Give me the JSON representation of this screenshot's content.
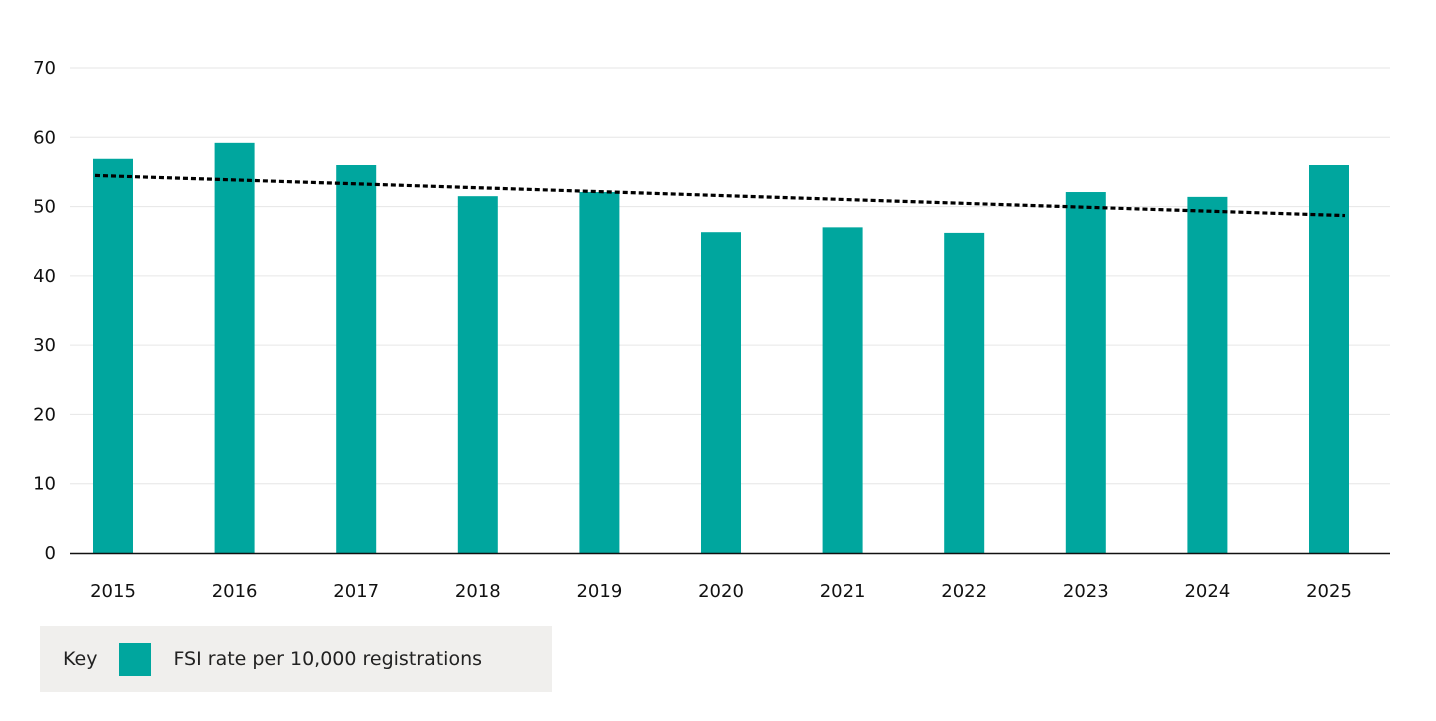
{
  "chart_data": {
    "type": "bar",
    "categories": [
      "2015",
      "2016",
      "2017",
      "2018",
      "2019",
      "2020",
      "2021",
      "2022",
      "2023",
      "2024",
      "2025"
    ],
    "series": [
      {
        "name": "FSI rate per 10,000 registrations",
        "values": [
          56.9,
          59.2,
          56.0,
          51.5,
          52.1,
          46.3,
          47.0,
          46.2,
          52.1,
          51.4,
          56.0
        ],
        "color": "#00a69e"
      }
    ],
    "trendline": {
      "style": "dotted",
      "color": "#000000",
      "start": 54.5,
      "end": 48.7
    },
    "yticks": [
      0,
      10,
      20,
      30,
      40,
      50,
      60,
      70
    ],
    "ylim": [
      0,
      70
    ],
    "grid": true,
    "legend": {
      "title": "Key",
      "label": "FSI rate per 10,000 registrations",
      "position": "bottom-left"
    },
    "title": "",
    "xlabel": "",
    "ylabel": ""
  }
}
